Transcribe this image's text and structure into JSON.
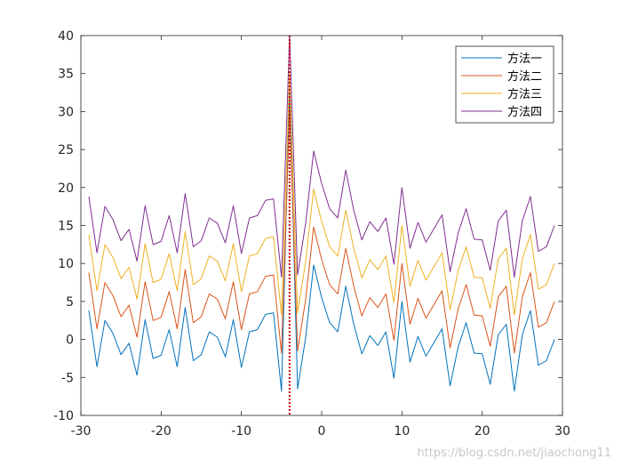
{
  "chart_data": {
    "type": "line",
    "title": "",
    "xlabel": "",
    "ylabel": "",
    "xlim": [
      -30,
      30
    ],
    "ylim": [
      -10,
      40
    ],
    "xticks": [
      -30,
      -20,
      -10,
      0,
      10,
      20,
      30
    ],
    "yticks": [
      -10,
      -5,
      0,
      5,
      10,
      15,
      20,
      25,
      30,
      35,
      40
    ],
    "grid": false,
    "legend_position": "top-right",
    "x": [
      -29,
      -28,
      -27,
      -26,
      -25,
      -24,
      -23,
      -22,
      -21,
      -20,
      -19,
      -18,
      -17,
      -16,
      -15,
      -14,
      -13,
      -12,
      -11,
      -10,
      -9,
      -8,
      -7,
      -6,
      -5,
      -4,
      -3,
      -2,
      -1,
      0,
      1,
      2,
      3,
      4,
      5,
      6,
      7,
      8,
      9,
      10,
      11,
      12,
      13,
      14,
      15,
      16,
      17,
      18,
      19,
      20,
      21,
      22,
      23,
      24,
      25,
      26,
      27,
      28,
      29
    ],
    "series": [
      {
        "name": "方法一",
        "color": "#0072BD",
        "values": [
          3.8,
          -3.6,
          2.5,
          0.8,
          -2.0,
          -0.5,
          -4.7,
          2.6,
          -2.5,
          -2.1,
          1.3,
          -3.6,
          4.2,
          -2.8,
          -2.0,
          1.0,
          0.3,
          -2.3,
          2.6,
          -3.7,
          1.0,
          1.3,
          3.3,
          3.5,
          -6.8,
          33.0,
          -6.5,
          0.2,
          9.8,
          5.5,
          2.2,
          1.0,
          7.0,
          2.0,
          -1.9,
          0.5,
          -0.8,
          1.0,
          -5.1,
          5.0,
          -3.0,
          0.4,
          -2.2,
          -0.4,
          1.4,
          -6.1,
          -1.0,
          2.2,
          -1.8,
          -1.9,
          -5.9,
          0.6,
          2.0,
          -6.8,
          0.6,
          3.8,
          -3.4,
          -2.8,
          0.0
        ]
      },
      {
        "name": "方法二",
        "color": "#D95319",
        "values": [
          8.8,
          1.4,
          7.5,
          5.8,
          3.0,
          4.5,
          0.3,
          7.6,
          2.5,
          2.9,
          6.3,
          1.4,
          9.2,
          2.2,
          3.0,
          6.0,
          5.3,
          2.7,
          7.6,
          1.3,
          6.0,
          6.3,
          8.3,
          8.5,
          -1.8,
          30.0,
          -1.5,
          5.2,
          14.8,
          10.5,
          7.2,
          6.0,
          12.0,
          7.0,
          3.1,
          5.5,
          4.2,
          6.0,
          -0.1,
          10.0,
          2.0,
          5.4,
          2.8,
          4.6,
          6.4,
          -1.1,
          4.0,
          7.2,
          3.2,
          3.1,
          -0.9,
          5.6,
          7.0,
          -1.8,
          5.6,
          8.8,
          1.6,
          2.2,
          5.0
        ]
      },
      {
        "name": "方法三",
        "color": "#EDB120",
        "values": [
          13.8,
          6.4,
          12.5,
          10.8,
          8.0,
          9.5,
          5.3,
          12.6,
          7.5,
          7.9,
          11.3,
          6.4,
          14.2,
          7.2,
          8.0,
          11.0,
          10.3,
          7.7,
          12.6,
          6.3,
          11.0,
          11.3,
          13.3,
          13.5,
          3.2,
          35.0,
          3.5,
          10.2,
          19.8,
          15.5,
          12.2,
          11.0,
          17.0,
          12.0,
          8.1,
          10.5,
          9.2,
          11.0,
          4.9,
          15.0,
          7.0,
          10.4,
          7.8,
          9.6,
          11.4,
          3.9,
          9.0,
          12.2,
          8.2,
          8.1,
          4.1,
          10.6,
          12.0,
          3.2,
          10.6,
          13.8,
          6.6,
          7.2,
          10.0
        ]
      },
      {
        "name": "方法四",
        "color": "#7E2F8E",
        "values": [
          18.8,
          11.4,
          17.5,
          15.8,
          13.0,
          14.5,
          10.3,
          17.6,
          12.5,
          12.9,
          16.3,
          11.4,
          19.2,
          12.2,
          13.0,
          16.0,
          15.3,
          12.7,
          17.6,
          11.3,
          16.0,
          16.3,
          18.3,
          18.5,
          8.2,
          40.0,
          8.5,
          15.2,
          24.8,
          20.5,
          17.2,
          16.0,
          22.3,
          17.0,
          13.1,
          15.5,
          14.2,
          16.0,
          9.9,
          20.0,
          12.0,
          15.4,
          12.8,
          14.6,
          16.4,
          8.9,
          14.0,
          17.2,
          13.2,
          13.1,
          9.1,
          15.6,
          17.0,
          8.2,
          15.6,
          18.8,
          11.6,
          12.2,
          15.0
        ]
      }
    ],
    "reference_lines": [
      {
        "type": "vertical",
        "x": -4,
        "color": "#D00000",
        "style": "dotted"
      }
    ]
  },
  "watermark": "https://blog.csdn.net/jiaochong11"
}
